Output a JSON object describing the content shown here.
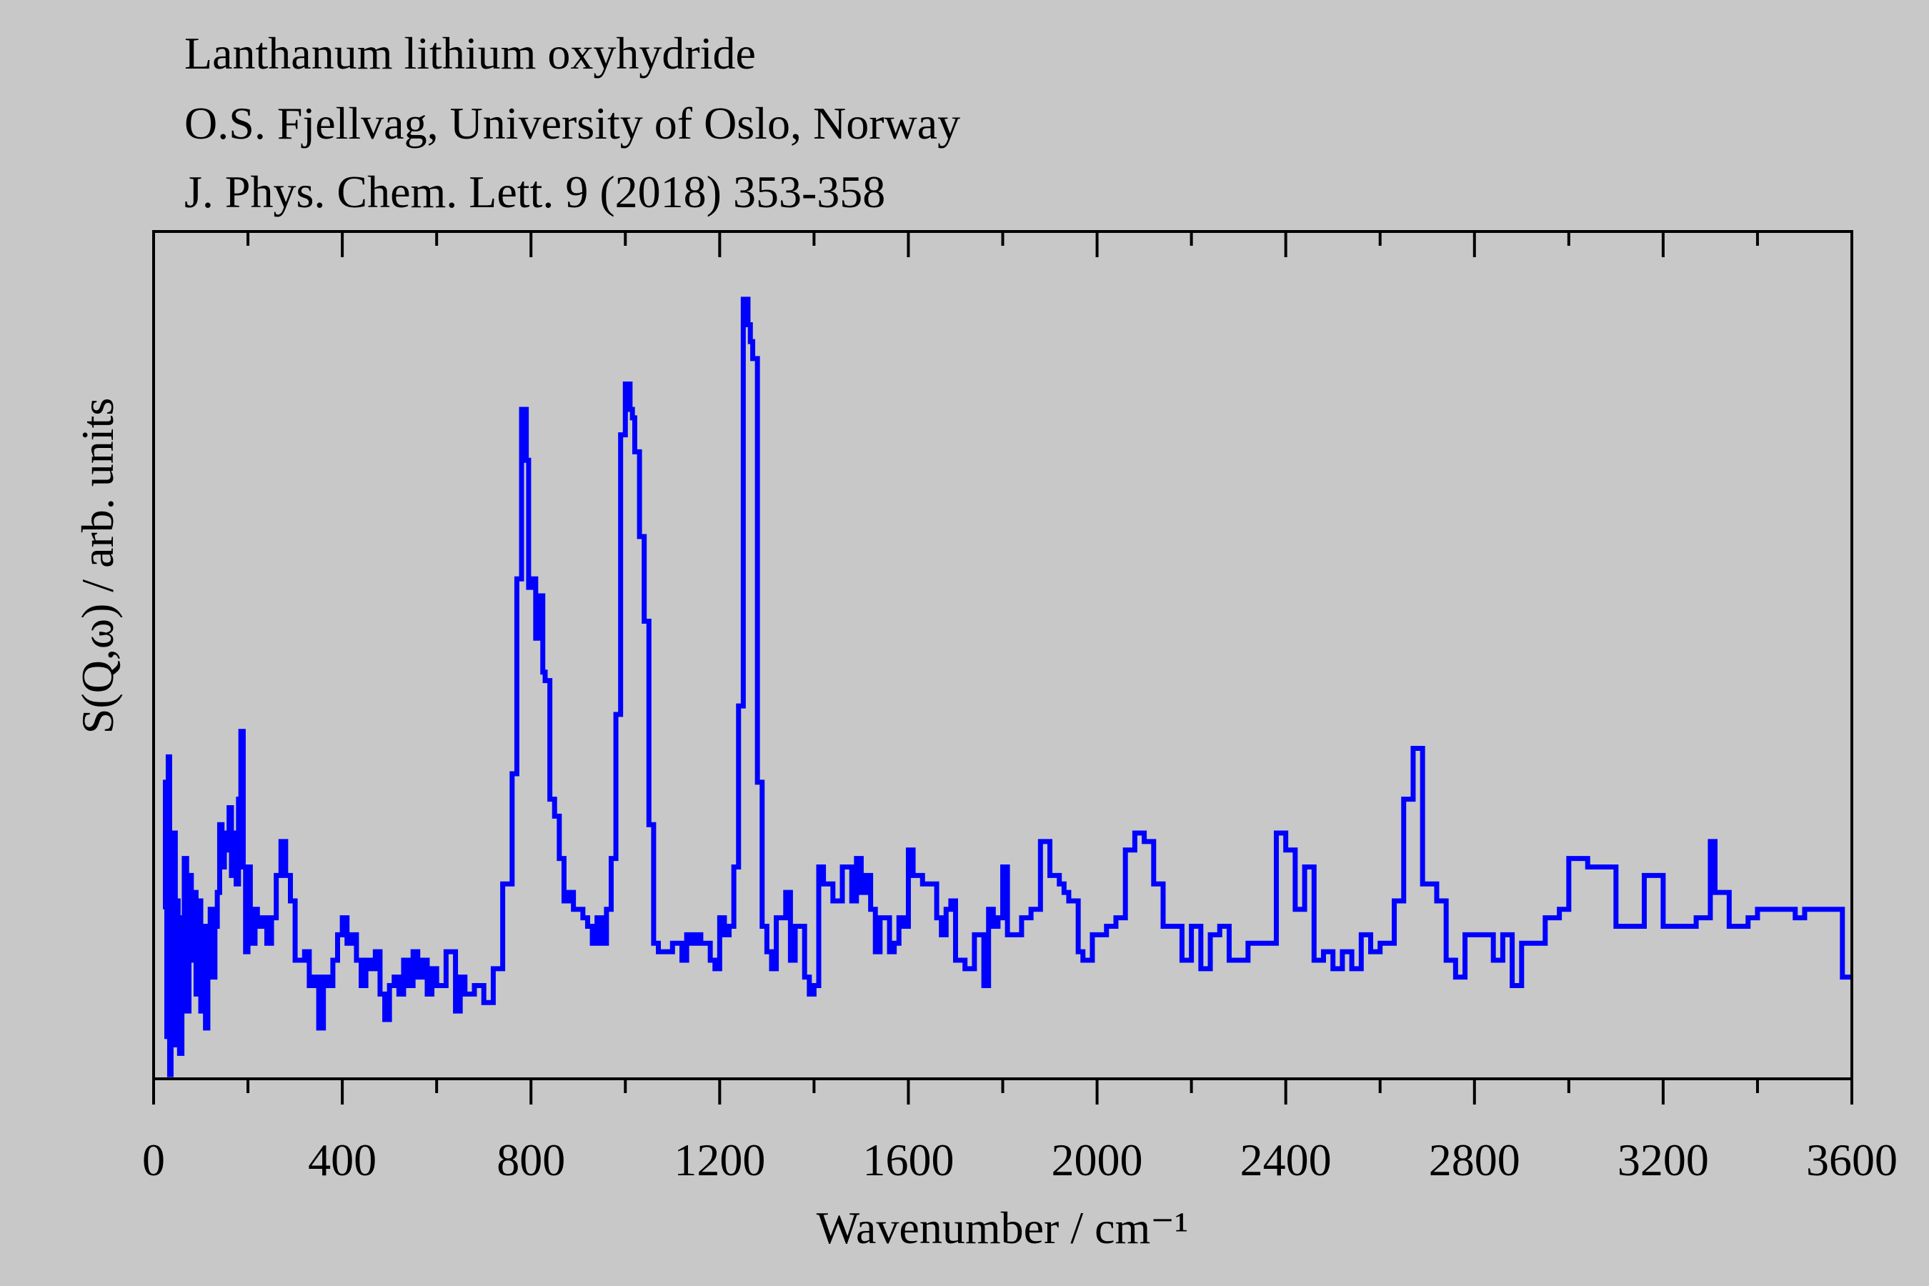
{
  "chart_data": {
    "type": "line",
    "drawstyle": "steps",
    "title": "Lanthanum lithium oxyhydride",
    "subtitle": [
      "O.S. Fjellvag, University of Oslo, Norway",
      "J. Phys. Chem. Lett. 9 (2018) 353-358"
    ],
    "xlabel": "Wavenumber / cm⁻¹",
    "ylabel": "S(Q,ω) / arb. units",
    "xlim": [
      0,
      3600
    ],
    "ylim": [
      0,
      100
    ],
    "xticks": [
      0,
      400,
      800,
      1200,
      1600,
      2000,
      2400,
      2800,
      3200,
      3600
    ],
    "xminorticks": [
      200,
      600,
      1000,
      1400,
      1800,
      2200,
      2600,
      3000,
      3400
    ],
    "x": [
      25,
      28,
      31,
      34,
      37,
      40,
      43,
      46,
      49,
      52,
      55,
      60,
      65,
      70,
      75,
      80,
      85,
      90,
      95,
      100,
      105,
      110,
      115,
      120,
      125,
      130,
      135,
      140,
      145,
      150,
      155,
      160,
      165,
      170,
      175,
      180,
      185,
      190,
      195,
      200,
      205,
      210,
      215,
      220,
      230,
      240,
      250,
      260,
      270,
      280,
      290,
      300,
      310,
      320,
      330,
      340,
      350,
      360,
      370,
      380,
      390,
      400,
      410,
      420,
      430,
      440,
      450,
      460,
      470,
      480,
      490,
      500,
      510,
      520,
      530,
      540,
      550,
      560,
      570,
      580,
      590,
      600,
      620,
      640,
      650,
      660,
      680,
      700,
      720,
      740,
      760,
      770,
      780,
      790,
      795,
      800,
      810,
      820,
      825,
      830,
      840,
      850,
      860,
      870,
      880,
      890,
      900,
      910,
      920,
      930,
      940,
      950,
      960,
      970,
      980,
      990,
      1000,
      1010,
      1015,
      1020,
      1030,
      1040,
      1050,
      1060,
      1070,
      1080,
      1100,
      1120,
      1130,
      1140,
      1150,
      1160,
      1180,
      1190,
      1200,
      1210,
      1220,
      1230,
      1240,
      1250,
      1260,
      1265,
      1270,
      1280,
      1290,
      1300,
      1310,
      1320,
      1340,
      1350,
      1360,
      1380,
      1390,
      1400,
      1410,
      1420,
      1440,
      1460,
      1480,
      1490,
      1500,
      1510,
      1520,
      1530,
      1540,
      1560,
      1570,
      1580,
      1590,
      1600,
      1610,
      1630,
      1640,
      1660,
      1670,
      1680,
      1690,
      1700,
      1720,
      1740,
      1760,
      1770,
      1780,
      1790,
      1800,
      1810,
      1820,
      1840,
      1860,
      1880,
      1900,
      1920,
      1930,
      1940,
      1960,
      1970,
      1990,
      2000,
      2020,
      2040,
      2060,
      2080,
      2100,
      2120,
      2140,
      2160,
      2180,
      2200,
      2210,
      2220,
      2240,
      2260,
      2280,
      2300,
      2320,
      2340,
      2360,
      2380,
      2400,
      2420,
      2440,
      2460,
      2480,
      2500,
      2520,
      2540,
      2560,
      2580,
      2600,
      2630,
      2650,
      2670,
      2690,
      2720,
      2740,
      2760,
      2780,
      2800,
      2840,
      2860,
      2880,
      2900,
      2920,
      2950,
      2980,
      3000,
      3040,
      3070,
      3100,
      3130,
      3160,
      3200,
      3230,
      3250,
      3270,
      3300,
      3310,
      3340,
      3360,
      3380,
      3400,
      3420,
      3440,
      3460,
      3480,
      3500,
      3580,
      3600
    ],
    "series": [
      {
        "name": "S(Q,ω)",
        "color": "#0000ff",
        "values": [
          20,
          35,
          5,
          38,
          0.5,
          28,
          10,
          29,
          4,
          21,
          12,
          3,
          19,
          26,
          8,
          24,
          14,
          22,
          10,
          21,
          8,
          18,
          6,
          14,
          20,
          12,
          18,
          22,
          30,
          25,
          29,
          27,
          32,
          24,
          29,
          23,
          33,
          41,
          25,
          15,
          25,
          18,
          16,
          20,
          18,
          19,
          16,
          19,
          24,
          28,
          24,
          21,
          14,
          14,
          15,
          11,
          12,
          6,
          12,
          11,
          14,
          17,
          19,
          16,
          17,
          14,
          11,
          14,
          13,
          15,
          10,
          7,
          11,
          12,
          10,
          14,
          11,
          15,
          12,
          14,
          10,
          13,
          11,
          15,
          8,
          12,
          10,
          11,
          9,
          13,
          23,
          36,
          59,
          79,
          73,
          58,
          59,
          52,
          57,
          48,
          47,
          33,
          31,
          26,
          21,
          22,
          20,
          20,
          19,
          18,
          16,
          19,
          16,
          20,
          26,
          43,
          76,
          82,
          79,
          78,
          74,
          64,
          54,
          30,
          16,
          15,
          15,
          16,
          14,
          17,
          16,
          17,
          16,
          14,
          13,
          19,
          17,
          18,
          25,
          44,
          92,
          89,
          87,
          85,
          35,
          18,
          15,
          13,
          19,
          22,
          14,
          18,
          12,
          10,
          11,
          25,
          23,
          21,
          25,
          21,
          26,
          22,
          24,
          20,
          15,
          19,
          15,
          16,
          19,
          18,
          27,
          24,
          23,
          23,
          19,
          17,
          20,
          21,
          14,
          13,
          17,
          11,
          20,
          18,
          19,
          25,
          17,
          17,
          19,
          20,
          28,
          24,
          23,
          22,
          21,
          15,
          14,
          17,
          17,
          18,
          19,
          27,
          29,
          28,
          23,
          18,
          18,
          14,
          18,
          18,
          13,
          17,
          18,
          14,
          14,
          16,
          16,
          16,
          29,
          27,
          20,
          25,
          14,
          15,
          13,
          15,
          13,
          17,
          15,
          16,
          21,
          33,
          39,
          23,
          21,
          14,
          12,
          17,
          17,
          14,
          17,
          11,
          16,
          16,
          19,
          20,
          26,
          25,
          25,
          18,
          18,
          24,
          18,
          18,
          18,
          19,
          28,
          22,
          18,
          18,
          19,
          20,
          20,
          20,
          20,
          19,
          20,
          12
        ]
      }
    ]
  }
}
